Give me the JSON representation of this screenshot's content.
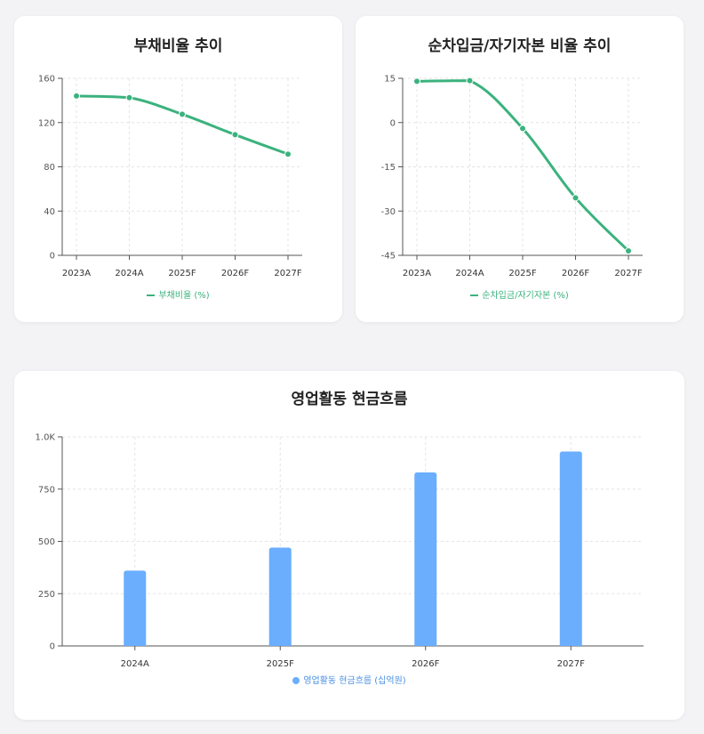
{
  "colors": {
    "line": "#3bb27e",
    "bar": "#6aaefd",
    "grid": "#e4e4e4",
    "axis": "#555555"
  },
  "charts": {
    "debt_ratio": {
      "title": "부채비율 추이",
      "legend": "부채비율 (%)"
    },
    "net_borrow": {
      "title": "순차입금/자기자본 비율 추이",
      "legend": "순차입금/자기자본 (%)"
    },
    "op_cf": {
      "title": "영업활동 현금흐름",
      "legend": "영업활동 현금흐름 (십억원)"
    }
  },
  "chart_data": [
    {
      "type": "line",
      "title": "부채비율 추이",
      "categories": [
        "2023A",
        "2024A",
        "2025F",
        "2026F",
        "2027F"
      ],
      "series": [
        {
          "name": "부채비율 (%)",
          "values": [
            144,
            142.5,
            127.5,
            109,
            91.5
          ]
        }
      ],
      "ylim": [
        0,
        160
      ],
      "yticks": [
        0,
        40,
        80,
        120,
        160
      ],
      "ytick_labels": [
        "0",
        "40",
        "80",
        "120",
        "160"
      ],
      "grid": true,
      "legend_position": "bottom"
    },
    {
      "type": "line",
      "title": "순차입금/자기자본 비율 추이",
      "categories": [
        "2023A",
        "2024A",
        "2025F",
        "2026F",
        "2027F"
      ],
      "series": [
        {
          "name": "순차입금/자기자본 (%)",
          "values": [
            14,
            14.2,
            -2,
            -25.5,
            -43.5
          ]
        }
      ],
      "ylim": [
        -45,
        15
      ],
      "yticks": [
        -45,
        -30,
        -15,
        0,
        15
      ],
      "ytick_labels": [
        "-45",
        "-30",
        "-15",
        "0",
        "15"
      ],
      "grid": true,
      "legend_position": "bottom"
    },
    {
      "type": "bar",
      "title": "영업활동 현금흐름",
      "categories": [
        "2024A",
        "2025F",
        "2026F",
        "2027F"
      ],
      "series": [
        {
          "name": "영업활동 현금흐름 (십억원)",
          "values": [
            360,
            470,
            830,
            930
          ]
        }
      ],
      "ylim": [
        0,
        1000
      ],
      "yticks": [
        0,
        250,
        500,
        750,
        1000
      ],
      "ytick_labels": [
        "0",
        "250",
        "500",
        "750",
        "1.0K"
      ],
      "grid": true,
      "legend_position": "bottom"
    }
  ]
}
